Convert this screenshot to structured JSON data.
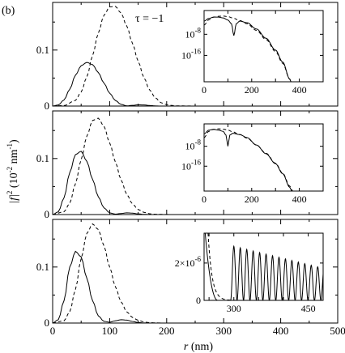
{
  "figure": {
    "panel_letter": "(b)",
    "annotation": "τ = −1",
    "ylabel_main": "|f|",
    "ylabel_sup": "2",
    "ylabel_unit": "(10",
    "ylabel_unit_sup": "-2",
    "ylabel_unit_end": " nm",
    "ylabel_unit_sup2": "-1",
    "ylabel_close": ")",
    "xlabel_var": "r",
    "xlabel_unit": " (nm)"
  },
  "chart_data": [
    {
      "type": "line",
      "panel": "top",
      "xlim": [
        0,
        500
      ],
      "ylim": [
        0,
        0.185
      ],
      "xticks": [
        0,
        100,
        200,
        300,
        400,
        500
      ],
      "yticks": [
        {
          "v": 0,
          "label": "0"
        },
        {
          "v": 0.1,
          "label": "0.1"
        }
      ],
      "series": [
        {
          "style": "solid",
          "x": [
            0,
            10,
            20,
            30,
            40,
            50,
            60,
            70,
            80,
            90,
            100,
            110,
            120,
            130,
            140,
            150,
            160,
            170,
            180,
            190,
            200,
            250,
            300,
            400,
            500
          ],
          "y": [
            0,
            0.002,
            0.011,
            0.03,
            0.055,
            0.072,
            0.078,
            0.074,
            0.06,
            0.041,
            0.023,
            0.01,
            0.003,
            0.0004,
            0.0012,
            0.0022,
            0.002,
            0.001,
            0.0003,
            0,
            0,
            0,
            0,
            0,
            0
          ]
        },
        {
          "style": "dashed",
          "x": [
            0,
            20,
            40,
            50,
            60,
            70,
            80,
            90,
            100,
            110,
            120,
            130,
            140,
            150,
            160,
            170,
            180,
            190,
            200,
            210,
            220,
            240,
            260,
            300,
            500
          ],
          "y": [
            0,
            0.001,
            0.01,
            0.025,
            0.052,
            0.09,
            0.13,
            0.162,
            0.177,
            0.178,
            0.166,
            0.143,
            0.112,
            0.08,
            0.051,
            0.029,
            0.015,
            0.006,
            0.0025,
            0.001,
            0.0004,
            0.0001,
            0,
            0,
            0
          ]
        }
      ],
      "inset": {
        "xlim": [
          0,
          500
        ],
        "ylim": [
          -26,
          1
        ],
        "xticks": [
          0,
          200,
          400
        ],
        "yticks": [
          {
            "v": -8,
            "label": "10",
            "exp": "-8"
          },
          {
            "v": -16,
            "label": "10",
            "exp": "-16"
          }
        ],
        "series": [
          {
            "style": "solid",
            "x": [
              0,
              20,
              40,
              60,
              80,
              100,
              115,
              125,
              135,
              150,
              180,
              220,
              260,
              300,
              330,
              360,
              365
            ],
            "y": [
              -3,
              -2,
              -1.5,
              -1.5,
              -1.8,
              -2.6,
              -4,
              -8.5,
              -4,
              -3,
              -3.6,
              -6,
              -9.5,
              -14,
              -18.5,
              -25,
              -26
            ]
          },
          {
            "style": "dashed",
            "x": [
              0,
              20,
              40,
              60,
              80,
              100,
              120,
              150,
              180,
              220,
              260,
              300,
              330,
              360,
              365
            ],
            "y": [
              -4.5,
              -2.5,
              -1.5,
              -1.2,
              -1.1,
              -1.3,
              -1.8,
              -2.8,
              -4,
              -6.5,
              -10,
              -14.5,
              -19,
              -25,
              -26
            ]
          }
        ]
      }
    },
    {
      "type": "line",
      "panel": "middle",
      "xlim": [
        0,
        500
      ],
      "ylim": [
        0,
        0.185
      ],
      "xticks": [
        0,
        100,
        200,
        300,
        400,
        500
      ],
      "yticks": [
        {
          "v": 0,
          "label": "0"
        },
        {
          "v": 0.1,
          "label": "0.1"
        }
      ],
      "series": [
        {
          "style": "solid",
          "x": [
            0,
            10,
            20,
            30,
            40,
            50,
            60,
            70,
            80,
            90,
            100,
            110,
            120,
            130,
            140,
            150,
            160,
            170,
            180,
            500
          ],
          "y": [
            0,
            0.005,
            0.03,
            0.075,
            0.107,
            0.113,
            0.095,
            0.063,
            0.032,
            0.012,
            0.003,
            0.0008,
            0.0018,
            0.003,
            0.0025,
            0.0012,
            0.0004,
            0,
            0,
            0
          ]
        },
        {
          "style": "dashed",
          "x": [
            0,
            20,
            30,
            40,
            50,
            60,
            70,
            80,
            90,
            100,
            110,
            120,
            130,
            140,
            150,
            160,
            170,
            180,
            200,
            220,
            240,
            500
          ],
          "y": [
            0,
            0.005,
            0.02,
            0.055,
            0.098,
            0.14,
            0.168,
            0.172,
            0.158,
            0.128,
            0.094,
            0.062,
            0.036,
            0.019,
            0.009,
            0.004,
            0.0015,
            0.0006,
            0.0001,
            0,
            0,
            0
          ]
        }
      ],
      "inset": {
        "xlim": [
          0,
          500
        ],
        "ylim": [
          -26,
          1
        ],
        "xticks": [
          0,
          200,
          400
        ],
        "yticks": [
          {
            "v": -8,
            "label": "10",
            "exp": "-8"
          },
          {
            "v": -16,
            "label": "10",
            "exp": "-16"
          }
        ],
        "series": [
          {
            "style": "solid",
            "x": [
              0,
              20,
              40,
              60,
              80,
              92,
              100,
              108,
              120,
              150,
              180,
              220,
              260,
              300,
              330,
              360,
              368
            ],
            "y": [
              -3,
              -1.5,
              -1.2,
              -1.5,
              -2,
              -3.5,
              -8,
              -3.5,
              -2.8,
              -3.3,
              -4.5,
              -7.5,
              -11,
              -15,
              -19,
              -24.5,
              -26
            ]
          },
          {
            "style": "dashed",
            "x": [
              0,
              20,
              40,
              60,
              80,
              100,
              120,
              150,
              180,
              220,
              260,
              300,
              330,
              360,
              372
            ],
            "y": [
              -4.5,
              -2,
              -1.2,
              -1,
              -1.1,
              -1.5,
              -2.2,
              -3.3,
              -4.7,
              -7.5,
              -10.8,
              -14.8,
              -18.8,
              -24,
              -26
            ]
          }
        ]
      }
    },
    {
      "type": "line",
      "panel": "bottom",
      "xlim": [
        0,
        500
      ],
      "ylim": [
        0,
        0.185
      ],
      "xticks": [
        {
          "v": 0,
          "label": "0"
        },
        {
          "v": 100,
          "label": "100"
        },
        {
          "v": 200,
          "label": "200"
        },
        {
          "v": 300,
          "label": "300"
        },
        {
          "v": 400,
          "label": "400"
        },
        {
          "v": 500,
          "label": "500"
        }
      ],
      "yticks": [
        {
          "v": 0,
          "label": "0"
        },
        {
          "v": 0.1,
          "label": "0.1"
        }
      ],
      "series": [
        {
          "style": "solid",
          "x": [
            0,
            10,
            20,
            30,
            40,
            50,
            60,
            70,
            80,
            90,
            100,
            110,
            120,
            130,
            140,
            150,
            160,
            170,
            500
          ],
          "y": [
            0,
            0.006,
            0.04,
            0.1,
            0.128,
            0.118,
            0.08,
            0.04,
            0.013,
            0.003,
            0.0015,
            0.004,
            0.006,
            0.0052,
            0.0028,
            0.001,
            0.0002,
            0,
            0
          ]
        },
        {
          "style": "dashed",
          "x": [
            0,
            20,
            30,
            40,
            50,
            60,
            70,
            80,
            90,
            100,
            110,
            120,
            130,
            140,
            150,
            160,
            170,
            180,
            200,
            220,
            500
          ],
          "y": [
            0,
            0.004,
            0.02,
            0.06,
            0.115,
            0.16,
            0.177,
            0.167,
            0.138,
            0.1,
            0.065,
            0.038,
            0.02,
            0.01,
            0.005,
            0.002,
            0.0008,
            0.0003,
            0,
            0,
            0
          ]
        }
      ],
      "inset": {
        "xlim": [
          240,
          480
        ],
        "ylim": [
          0,
          3.6e-06
        ],
        "xticks": [
          {
            "v": 300,
            "label": "300"
          },
          {
            "v": 450,
            "label": "450"
          }
        ],
        "yticks": [
          {
            "v": 0,
            "label": "0"
          },
          {
            "v": 2e-06,
            "label": "2×10",
            "exp": "-6"
          }
        ],
        "oscillation": {
          "first_peak_x": 300,
          "spacing": 13,
          "count": 14,
          "first_amp": 2.9e-06,
          "decay_to": 1.8e-06,
          "rise_x": 252,
          "decay_x": 268
        },
        "dashed_decay": {
          "start_x": 248,
          "start_y": 3.6e-06,
          "scale": 8
        }
      }
    }
  ]
}
